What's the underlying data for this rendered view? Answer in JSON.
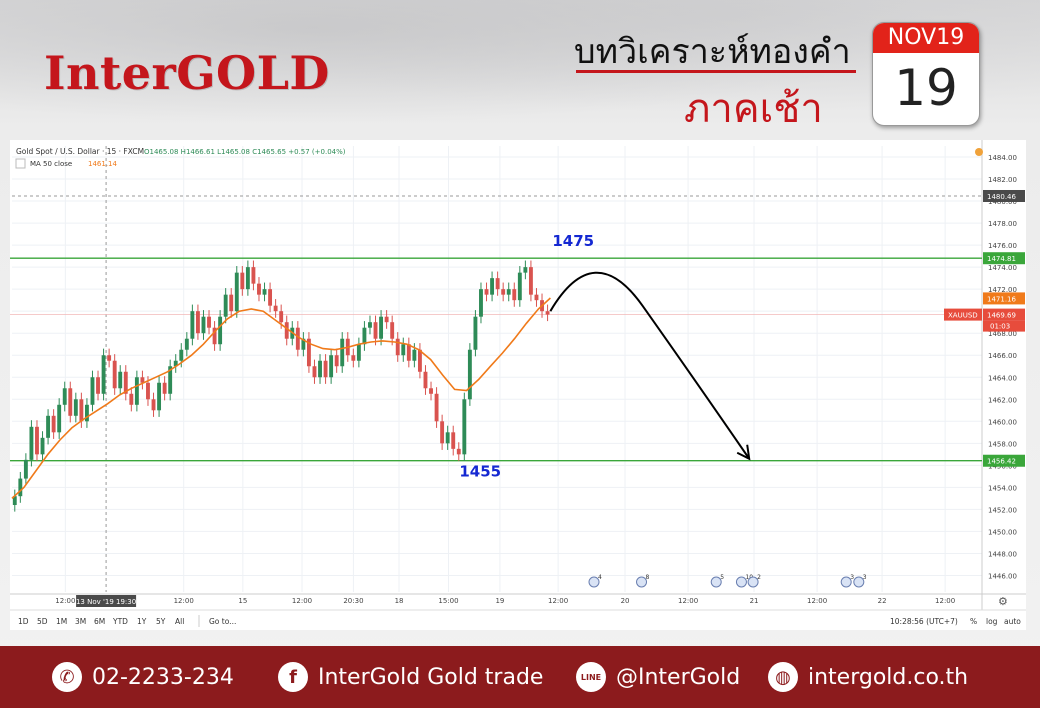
{
  "brand": {
    "logo_text": "InterGOLD"
  },
  "header": {
    "title": "บทวิเคราะห์ทองคำ",
    "subtitle": "ภาคเช้า"
  },
  "calendar": {
    "month_label": "NOV19",
    "day": "19"
  },
  "colors": {
    "brand_red": "#c4161c",
    "footer": "#8c1b1d",
    "price_candle_up": "#2e8b57",
    "price_candle_down": "#d9534f",
    "ma": "#f07a1a",
    "support_resistance": "#3aa63a",
    "annotation": "#1428d2"
  },
  "chart_data": {
    "type": "candlestick",
    "header_text": "Gold Spot / U.S. Dollar · 15 · FXCM",
    "ohlc_text": "O1465.08  H1466.61  L1465.08  C1465.65  +0.57 (+0.04%)",
    "ma_label": "MA 50 close",
    "ma_value": "1461.14",
    "ylim": [
      1444.5,
      1485.0
    ],
    "y_ticks": [
      "1484.00",
      "1482.00",
      "1480.00",
      "1478.00",
      "1476.00",
      "1474.00",
      "1472.00",
      "1470.00",
      "1468.00",
      "1466.00",
      "1464.00",
      "1462.00",
      "1460.00",
      "1458.00",
      "1456.00",
      "1454.00",
      "1452.00",
      "1450.00",
      "1448.00",
      "1446.00"
    ],
    "x_ticks": [
      {
        "t": 0.055,
        "label": "12:00"
      },
      {
        "t": 0.177,
        "label": "12:00"
      },
      {
        "t": 0.238,
        "label": "15"
      },
      {
        "t": 0.299,
        "label": "12:00"
      },
      {
        "t": 0.352,
        "label": "20:30"
      },
      {
        "t": 0.399,
        "label": "18"
      },
      {
        "t": 0.45,
        "label": "15:00"
      },
      {
        "t": 0.503,
        "label": "19"
      },
      {
        "t": 0.563,
        "label": "12:00"
      },
      {
        "t": 0.632,
        "label": "20"
      },
      {
        "t": 0.697,
        "label": "12:00"
      },
      {
        "t": 0.765,
        "label": "21"
      },
      {
        "t": 0.83,
        "label": "12:00"
      },
      {
        "t": 0.897,
        "label": "22"
      },
      {
        "t": 0.962,
        "label": "12:00"
      }
    ],
    "crosshair_label": "13 Nov '19   19:30",
    "resistance": 1474.81,
    "support": 1456.42,
    "price_tags": [
      {
        "value": 1480.46,
        "label": "1480.46",
        "kind": "cursor"
      },
      {
        "value": 1474.81,
        "label": "1474.81",
        "kind": "resistance"
      },
      {
        "value": 1471.16,
        "label": "1471.16",
        "kind": "ma"
      },
      {
        "value": 1469.69,
        "label": "1469.69",
        "kind": "price"
      },
      {
        "value": 1456.42,
        "label": "1456.42",
        "kind": "support"
      }
    ],
    "symbol_tag": "XAUUSD",
    "countdown": "01:03",
    "annotations": {
      "upper_label": "1475",
      "lower_label": "1455"
    },
    "projection": [
      {
        "t": 0.555,
        "v": 1470.0
      },
      {
        "t": 0.6,
        "v": 1474.0
      },
      {
        "t": 0.65,
        "v": 1470.5
      },
      {
        "t": 0.705,
        "v": 1464.0
      },
      {
        "t": 0.76,
        "v": 1456.6
      }
    ],
    "close_series": [
      1453.2,
      1454.8,
      1456.5,
      1459.5,
      1457.0,
      1458.5,
      1460.5,
      1459.0,
      1461.5,
      1463.0,
      1460.5,
      1462.0,
      1460.0,
      1461.5,
      1464.0,
      1462.5,
      1466.0,
      1465.5,
      1463.0,
      1464.5,
      1462.5,
      1461.5,
      1464.0,
      1463.5,
      1462.0,
      1461.0,
      1463.5,
      1462.5,
      1465.0,
      1465.5,
      1466.5,
      1467.5,
      1470.0,
      1468.0,
      1469.5,
      1468.5,
      1467.0,
      1469.5,
      1471.5,
      1470.0,
      1473.5,
      1472.0,
      1474.0,
      1472.5,
      1471.5,
      1472.0,
      1470.5,
      1470.0,
      1469.0,
      1467.5,
      1468.5,
      1466.5,
      1467.5,
      1465.0,
      1464.0,
      1465.5,
      1464.0,
      1466.0,
      1465.0,
      1467.5,
      1466.0,
      1465.5,
      1467.0,
      1468.5,
      1469.0,
      1467.5,
      1469.5,
      1469.0,
      1467.5,
      1466.0,
      1467.0,
      1465.5,
      1466.5,
      1464.5,
      1463.0,
      1462.5,
      1460.0,
      1458.0,
      1459.0,
      1457.5,
      1457.0,
      1462.0,
      1466.5,
      1469.5,
      1472.0,
      1471.5,
      1473.0,
      1472.0,
      1471.5,
      1472.0,
      1471.0,
      1473.5,
      1474.0,
      1471.5,
      1471.0,
      1470.0,
      1469.7
    ],
    "ma_series": [
      1453.0,
      1454.0,
      1455.5,
      1457.0,
      1458.3,
      1459.4,
      1460.2,
      1460.9,
      1461.6,
      1462.4,
      1463.0,
      1463.5,
      1464.0,
      1464.5,
      1465.2,
      1466.0,
      1467.0,
      1468.2,
      1469.3,
      1470.0,
      1470.2,
      1470.0,
      1469.2,
      1468.4,
      1467.6,
      1467.0,
      1466.6,
      1466.5,
      1466.7,
      1467.0,
      1467.2,
      1467.3,
      1467.2,
      1467.0,
      1466.5,
      1465.6,
      1464.2,
      1462.9,
      1462.8,
      1463.8,
      1465.0,
      1466.2,
      1467.5,
      1468.9,
      1470.2,
      1471.2
    ],
    "x_start": 0.0,
    "x_end": 0.555,
    "event_flags": [
      {
        "t": 0.6,
        "label": "4"
      },
      {
        "t": 0.649,
        "label": "8"
      },
      {
        "t": 0.726,
        "label": "5"
      },
      {
        "t": 0.752,
        "label": "10"
      },
      {
        "t": 0.764,
        "label": "2"
      },
      {
        "t": 0.86,
        "label": "3"
      },
      {
        "t": 0.873,
        "label": "3"
      }
    ],
    "grid": true
  },
  "toolbar": {
    "ranges": [
      "1D",
      "5D",
      "1M",
      "3M",
      "6M",
      "YTD",
      "1Y",
      "5Y",
      "All"
    ],
    "goto": "Go to...",
    "time": "10:28:56 (UTC+7)",
    "percent": "%",
    "log": "log",
    "auto": "auto"
  },
  "footer": {
    "phone": "02-2233-234",
    "facebook": "InterGold Gold trade",
    "line": "@InterGold",
    "website": "intergold.co.th",
    "line_icon_text": "LINE"
  }
}
